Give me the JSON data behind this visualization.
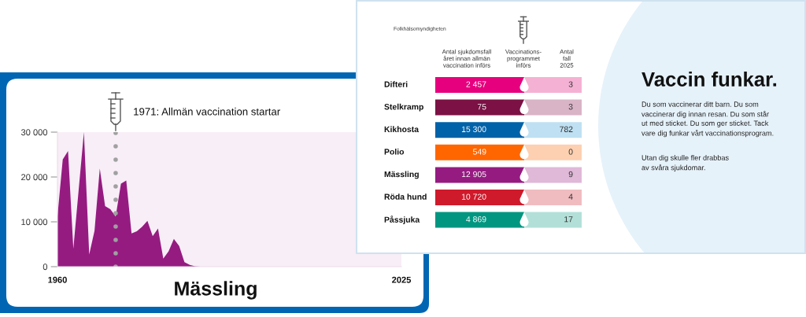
{
  "chart_data": [
    {
      "type": "area",
      "title": "Mässling",
      "x": [
        1960,
        1961,
        1962,
        1963,
        1964,
        1965,
        1966,
        1967,
        1968,
        1969,
        1970,
        1971,
        1972,
        1973,
        1974,
        1975,
        1976,
        1977,
        1978,
        1979,
        1980,
        1981,
        1982,
        1983,
        1984,
        1985,
        1986,
        1987,
        2025
      ],
      "series": [
        {
          "color": "#951b81",
          "values": [
            11200,
            23900,
            25800,
            4000,
            17000,
            30000,
            2700,
            8000,
            21900,
            13500,
            12800,
            11200,
            18500,
            19200,
            7400,
            7900,
            8900,
            10200,
            6800,
            8500,
            1800,
            3400,
            6200,
            4600,
            1000,
            400,
            100,
            0,
            0
          ]
        }
      ],
      "xlim": [
        1960,
        2025
      ],
      "xticks": [
        1960,
        2025
      ],
      "ylim": [
        0,
        30000
      ],
      "yticks": [
        0,
        {
          "value": 10000,
          "label": "10 000"
        },
        {
          "value": 20000,
          "label": "20 000"
        },
        {
          "value": 30000,
          "label": "30 000"
        }
      ],
      "ref_lines": [
        {
          "axis": "x",
          "value": 1971,
          "label": "1971: Allmän vaccination startar",
          "line_style": "dotted",
          "color": "#a0a0a0"
        }
      ]
    },
    {
      "type": "other",
      "annotations": [
        "Folkhälsomyndigheten",
        "Vaccinations-\nprogrammet\ninförs"
      ],
      "categories": [
        "Difteri",
        "Stelkramp",
        "Kikhosta",
        "Polio",
        "Mässling",
        "Röda hund",
        "Påssjuka"
      ],
      "data_labels": true,
      "series": [
        {
          "name": "Antal sjukdomsfall\nåret innan allmän\nvaccination införs",
          "colors": [
            "#e6007e",
            "#7b1144",
            "#0062a8",
            "#ff6600",
            "#951b81",
            "#cf1a2b",
            "#009680"
          ],
          "values": [
            2457,
            75,
            15300,
            549,
            12905,
            10720,
            4869
          ]
        },
        {
          "name": "Antal\nfall\n2025",
          "colors": [
            "#f5b1d3",
            "#d9b3c6",
            "#bfe0f2",
            "#fdd0b1",
            "#e0b8d8",
            "#f0bcc0",
            "#b2e0d9"
          ],
          "values": [
            3,
            3,
            782,
            0,
            9,
            4,
            17
          ]
        }
      ]
    },
    {
      "type": "other",
      "title": "Vaccin funkar.",
      "annotations": [
        "Du som vaccinerar ditt barn. Du som\nvaccinerar dig innan resan. Du som står\nut med sticket. Du som ger sticket. Tack\nvare dig funkar vårt vaccinationsprogram.",
        "Utan dig skulle fler drabbas\nav svåra sjukdomar."
      ]
    }
  ]
}
